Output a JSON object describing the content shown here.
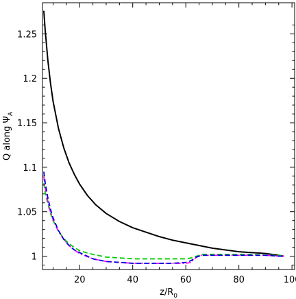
{
  "chart_data": {
    "type": "line",
    "title": "",
    "xlabel": "z/R",
    "xlabel_sub": "0",
    "ylabel": "Q along Ψ",
    "ylabel_sub": "A",
    "xlim": [
      6,
      101
    ],
    "ylim": [
      0.985,
      1.285
    ],
    "xticks": [
      20,
      40,
      60,
      80,
      100
    ],
    "xtick_labels": [
      "20",
      "40",
      "60",
      "80",
      "100"
    ],
    "yticks": [
      1,
      1.05,
      1.1,
      1.15,
      1.2,
      1.25
    ],
    "ytick_labels": [
      "1",
      "1.05",
      "1.1",
      "1.15",
      "1.2",
      "1.25"
    ],
    "grid": false,
    "legend": "none",
    "series": [
      {
        "color": "#000000",
        "style": "solid",
        "x": [
          6.5,
          7,
          8,
          9,
          10,
          12,
          14,
          16,
          18,
          20,
          23,
          26,
          30,
          35,
          40,
          45,
          50,
          55,
          60,
          65,
          70,
          75,
          80,
          85,
          90,
          95,
          97
        ],
        "y": [
          1.276,
          1.255,
          1.221,
          1.195,
          1.174,
          1.144,
          1.122,
          1.105,
          1.092,
          1.081,
          1.068,
          1.058,
          1.048,
          1.039,
          1.032,
          1.027,
          1.022,
          1.018,
          1.015,
          1.012,
          1.009,
          1.007,
          1.005,
          1.004,
          1.003,
          1.001,
          1.0
        ]
      },
      {
        "color": "#00cc00",
        "style": "dashed",
        "x": [
          6.5,
          7,
          8,
          9,
          10,
          12,
          14,
          16,
          18,
          20,
          25,
          30,
          35,
          40,
          45,
          50,
          55,
          60,
          62,
          64,
          66,
          70,
          75,
          80,
          85,
          90,
          95,
          97
        ],
        "y": [
          1.082,
          1.072,
          1.059,
          1.048,
          1.04,
          1.028,
          1.02,
          1.014,
          1.01,
          1.006,
          1.002,
          0.999,
          0.998,
          0.997,
          0.997,
          0.997,
          0.997,
          0.997,
          0.998,
          1.0,
          1.002,
          1.002,
          1.002,
          1.002,
          1.002,
          1.001,
          1.001,
          1.0
        ]
      },
      {
        "color": "#ff00ff",
        "style": "dash-dot",
        "x": [
          6.5,
          7,
          8,
          9,
          10,
          12,
          14,
          16,
          18,
          20,
          25,
          30,
          35,
          40,
          45,
          50,
          55,
          60,
          62,
          64,
          66,
          70,
          75,
          80,
          85,
          90,
          95,
          97
        ],
        "y": [
          1.089,
          1.078,
          1.062,
          1.05,
          1.041,
          1.028,
          1.019,
          1.012,
          1.007,
          1.003,
          0.997,
          0.994,
          0.993,
          0.992,
          0.992,
          0.992,
          0.992,
          0.992,
          0.993,
          0.999,
          1.001,
          1.001,
          1.001,
          1.001,
          1.001,
          1.001,
          1.0,
          1.0
        ]
      },
      {
        "color": "#0000dd",
        "style": "dashed",
        "x": [
          6.5,
          7,
          8,
          9,
          10,
          12,
          14,
          16,
          18,
          20,
          25,
          30,
          35,
          40,
          45,
          50,
          55,
          60,
          62,
          64,
          66,
          70,
          75,
          80,
          85,
          90,
          95,
          97
        ],
        "y": [
          1.095,
          1.083,
          1.066,
          1.053,
          1.043,
          1.029,
          1.019,
          1.012,
          1.007,
          1.004,
          0.997,
          0.994,
          0.993,
          0.992,
          0.992,
          0.992,
          0.992,
          0.993,
          0.995,
          0.999,
          1.001,
          1.001,
          1.001,
          1.001,
          1.001,
          1.001,
          1.0,
          1.0
        ]
      }
    ]
  }
}
